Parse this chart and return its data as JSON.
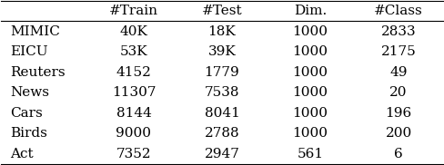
{
  "columns": [
    "#Train",
    "#Test",
    "Dim.",
    "#Class"
  ],
  "rows": [
    "MIMIC",
    "EICU",
    "Reuters",
    "News",
    "Cars",
    "Birds",
    "Act"
  ],
  "data": [
    [
      "40K",
      "18K",
      "1000",
      "2833"
    ],
    [
      "53K",
      "39K",
      "1000",
      "2175"
    ],
    [
      "4152",
      "1779",
      "1000",
      "49"
    ],
    [
      "11307",
      "7538",
      "1000",
      "20"
    ],
    [
      "8144",
      "8041",
      "1000",
      "196"
    ],
    [
      "9000",
      "2788",
      "1000",
      "200"
    ],
    [
      "7352",
      "2947",
      "561",
      "6"
    ]
  ],
  "font_size": 11,
  "background_color": "#ffffff",
  "text_color": "#000000"
}
